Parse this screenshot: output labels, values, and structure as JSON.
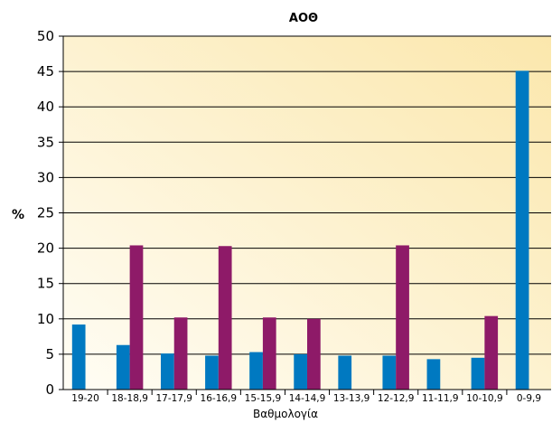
{
  "chart_data": {
    "type": "bar",
    "title": "ΑΟΘ",
    "xlabel": "Βαθμολογία",
    "ylabel": "%",
    "ylim": [
      0,
      50
    ],
    "yticks": [
      0,
      5,
      10,
      15,
      20,
      25,
      30,
      35,
      40,
      45,
      50
    ],
    "grid": true,
    "legend": "none",
    "categories": [
      "19-20",
      "18-18,9",
      "17-17,9",
      "16-16,9",
      "15-15,9",
      "14-14,9",
      "13-13,9",
      "12-12,9",
      "11-11,9",
      "10-10,9",
      "0-9,9"
    ],
    "series": [
      {
        "color": "#0079c1",
        "values": [
          9.2,
          6.3,
          5.1,
          4.8,
          5.3,
          5.0,
          4.8,
          4.8,
          4.3,
          4.5,
          45.1
        ]
      },
      {
        "color": "#8e1a68",
        "values": [
          0,
          20.4,
          10.2,
          20.3,
          10.2,
          10.0,
          0,
          20.4,
          0,
          10.4,
          0
        ]
      }
    ],
    "colors": {
      "plot_bg_top": "#fbe7ac",
      "plot_bg_bottom": "#fffdf5",
      "axis": "#000000",
      "grid": "#000000"
    }
  }
}
